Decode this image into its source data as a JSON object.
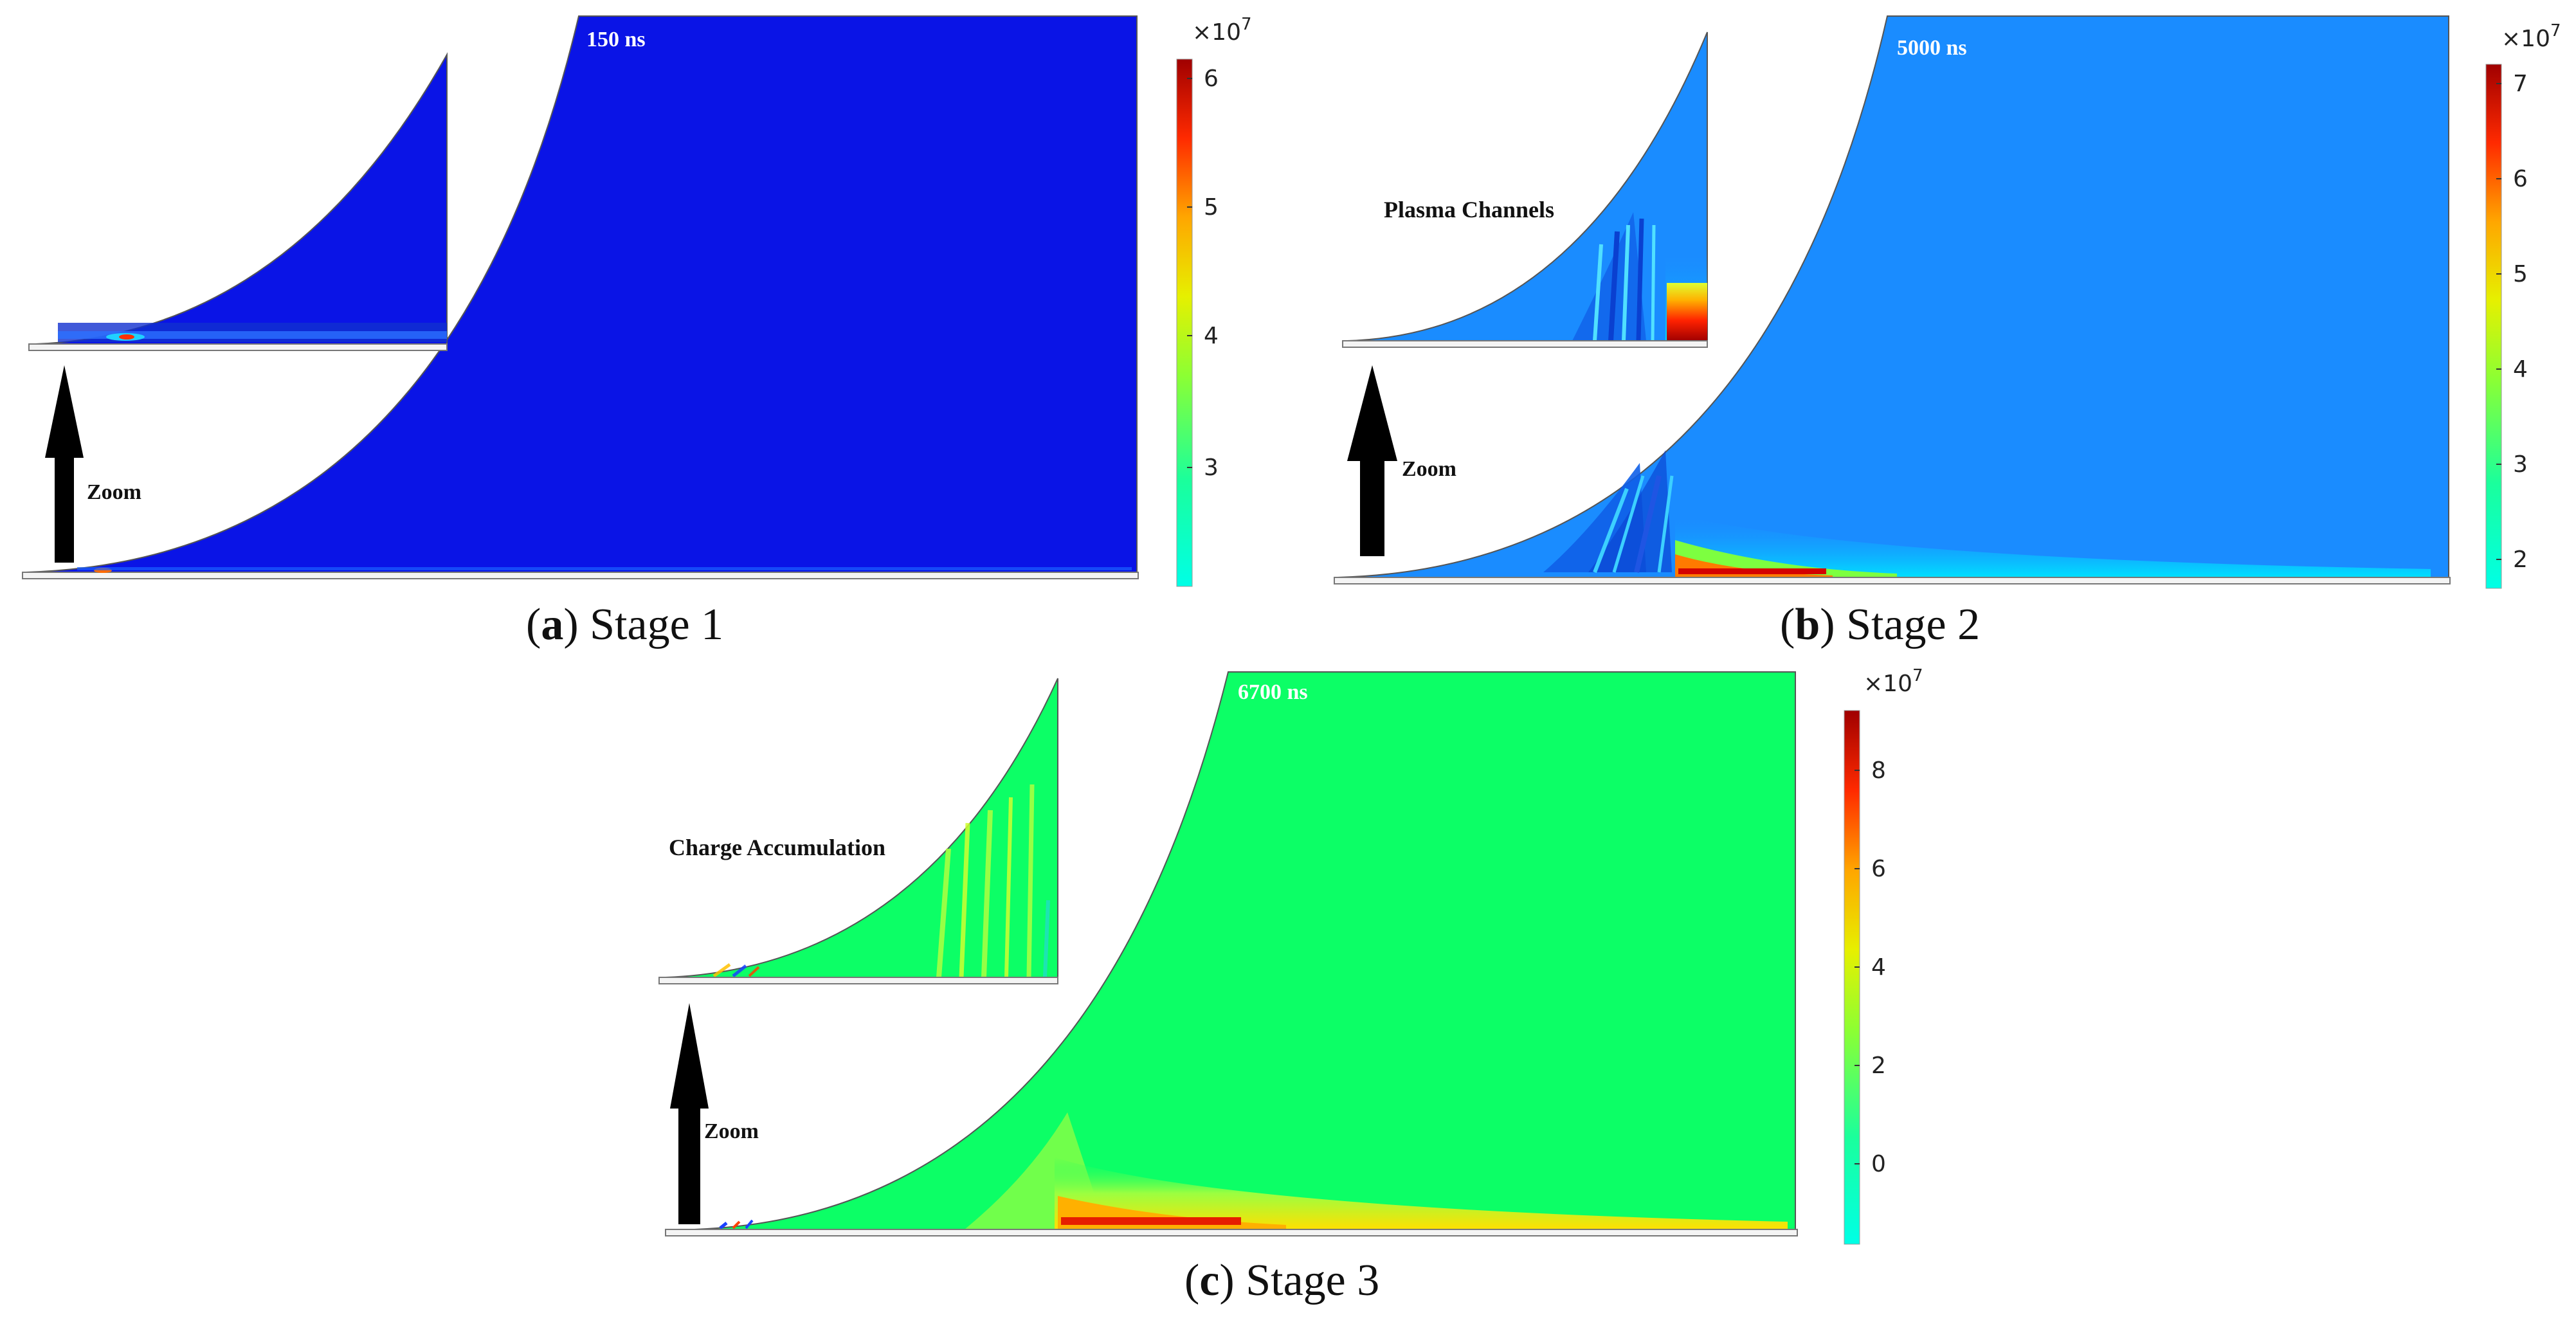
{
  "colors": {
    "stage1_fill": "#0a14e6",
    "stage2_fill": "#1a8cff",
    "stage3_fill": "#0cff66",
    "arrow": "#000000"
  },
  "panels": [
    {
      "time": "150 ns",
      "caption_letter": "a",
      "caption_text": "Stage 1",
      "inset_label": "",
      "zoom_label": "Zoom",
      "colorbar": {
        "multiplier": "×10",
        "exponent": "7",
        "ticks": [
          "6",
          "5",
          "4",
          "3"
        ]
      }
    },
    {
      "time": "5000 ns",
      "caption_letter": "b",
      "caption_text": "Stage 2",
      "inset_label": "Plasma Channels",
      "zoom_label": "Zoom",
      "colorbar": {
        "multiplier": "×10",
        "exponent": "7",
        "ticks": [
          "7",
          "6",
          "5",
          "4",
          "3",
          "2"
        ]
      }
    },
    {
      "time": "6700 ns",
      "caption_letter": "c",
      "caption_text": "Stage 3",
      "inset_label": "Charge Accumulation",
      "zoom_label": "Zoom",
      "colorbar": {
        "multiplier": "×10",
        "exponent": "7",
        "ticks": [
          "8",
          "6",
          "4",
          "2",
          "0"
        ]
      }
    }
  ]
}
